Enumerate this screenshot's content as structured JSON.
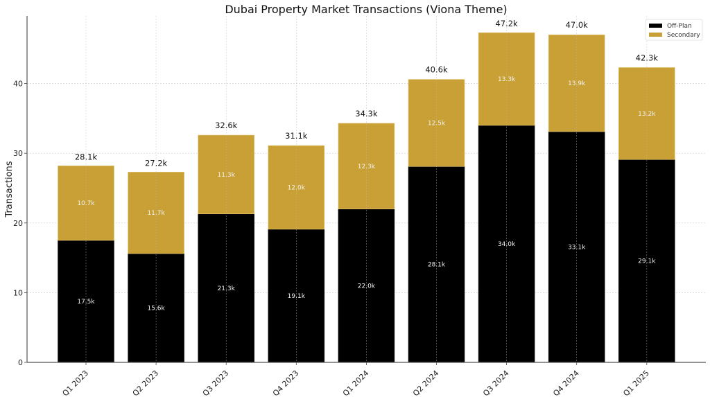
{
  "chart_data": {
    "type": "bar",
    "stacked": true,
    "title": "Dubai Property Market Transactions (Viona Theme)",
    "xlabel": "",
    "ylabel": "Transactions",
    "ylim": [
      0,
      49.7
    ],
    "yticks": [
      0,
      10,
      20,
      30,
      40
    ],
    "grid": true,
    "legend_position": "top-right",
    "categories": [
      "Q1 2023",
      "Q2 2023",
      "Q3 2023",
      "Q4 2023",
      "Q1 2024",
      "Q2 2024",
      "Q3 2024",
      "Q4 2024",
      "Q1 2025"
    ],
    "series": [
      {
        "name": "Off-Plan",
        "color": "#000000",
        "values": [
          17.5,
          15.6,
          21.3,
          19.1,
          22.0,
          28.1,
          34.0,
          33.1,
          29.1
        ],
        "labels": [
          "17.5k",
          "15.6k",
          "21.3k",
          "19.1k",
          "22.0k",
          "28.1k",
          "34.0k",
          "33.1k",
          "29.1k"
        ]
      },
      {
        "name": "Secondary",
        "color": "#C9A035",
        "values": [
          10.7,
          11.7,
          11.3,
          12.0,
          12.3,
          12.5,
          13.3,
          13.9,
          13.2
        ],
        "labels": [
          "10.7k",
          "11.7k",
          "11.3k",
          "12.0k",
          "12.3k",
          "12.5k",
          "13.3k",
          "13.9k",
          "13.2k"
        ]
      }
    ],
    "totals": [
      28.1,
      27.2,
      32.6,
      31.1,
      34.3,
      40.6,
      47.2,
      47.0,
      42.3
    ],
    "total_labels": [
      "28.1k",
      "27.2k",
      "32.6k",
      "31.1k",
      "34.3k",
      "40.6k",
      "47.2k",
      "47.0k",
      "42.3k"
    ]
  }
}
